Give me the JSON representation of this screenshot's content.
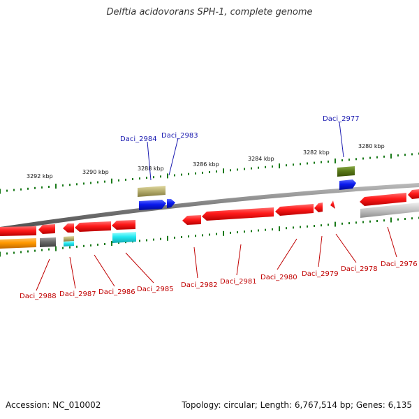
{
  "title": "Delftia acidovorans SPH-1, complete genome",
  "footer": {
    "accession": "Accession: NC_010002",
    "stats": "Topology: circular; Length: 6,767,514 bp; Genes: 6,135"
  },
  "scale_labels": [
    "3292 kbp",
    "3290 kbp",
    "3288 kbp",
    "3286 kbp",
    "3284 kbp",
    "3282 kbp",
    "3280 kbp"
  ],
  "gene_labels_top": [
    "Daci_2984",
    "Daci_2983",
    "Daci_2977"
  ],
  "gene_labels_bottom": [
    "Daci_2988",
    "Daci_2987",
    "Daci_2986",
    "Daci_2985",
    "Daci_2982",
    "Daci_2981",
    "Daci_2980",
    "Daci_2979",
    "Daci_2978",
    "Daci_2976"
  ],
  "colors": {
    "forward_label": "#1a1ab0",
    "reverse_label": "#c00000",
    "tick": "#1a7a1a",
    "backbone": "#777777",
    "red_gene": "#ff1a1a",
    "blue_gene": "#0a1aee",
    "olive_gene": "#b8b070",
    "green_gene": "#5a7a1a",
    "orange_gene": "#ff9900",
    "gray_gene": "#6a6a6a",
    "cyan_gene": "#22e8f0",
    "lightgray_gene": "#bdbdbd"
  }
}
